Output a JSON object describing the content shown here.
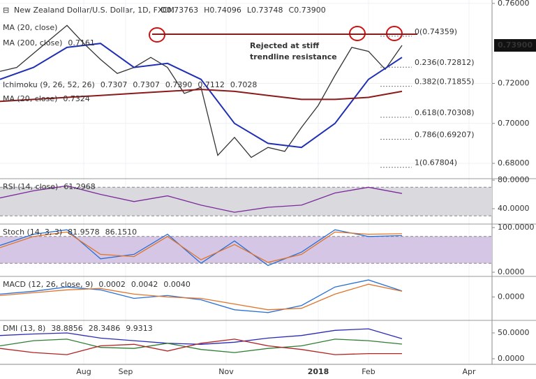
{
  "chart_data": [
    {
      "type": "line",
      "title": "New Zealand Dollar/U.S. Dollar, 1D, FXCM",
      "ohlc": [
        "O0.73763",
        "H0.74096",
        "L0.73748",
        "C0.73900"
      ],
      "legend": [
        {
          "name": "MA (20, close)",
          "values": []
        },
        {
          "name": "MA (200, close)",
          "values": [
            {
              "value": 0.7161,
              "color": "#8b1a1a"
            }
          ]
        },
        {
          "name": "Ichimoku (9, 26, 52, 26)",
          "values": [
            {
              "value": 0.7307,
              "color": "#2a4bd0"
            },
            {
              "value": 0.7307,
              "color": "#b22222"
            },
            {
              "value": 0.739,
              "label": "0.7390",
              "color": "#2e8b3d"
            },
            {
              "value": 0.7112,
              "color": "#2e8b3d"
            },
            {
              "value": 0.7028,
              "color": "#b22222"
            }
          ]
        },
        {
          "name": "MA (20, close)",
          "values": [
            {
              "value": 0.7324,
              "color": "#2a4bd0"
            }
          ]
        }
      ],
      "series": [
        {
          "name": "Close",
          "color": "#333333",
          "x": [
            0,
            2,
            4,
            6,
            8,
            10,
            12,
            14,
            16,
            18,
            20,
            22,
            24,
            26,
            28,
            30,
            32,
            34,
            36,
            38,
            40,
            42,
            44,
            46,
            48
          ],
          "values": [
            0.726,
            0.728,
            0.735,
            0.742,
            0.749,
            0.74,
            0.732,
            0.725,
            0.728,
            0.733,
            0.728,
            0.715,
            0.718,
            0.684,
            0.693,
            0.683,
            0.688,
            0.686,
            0.698,
            0.709,
            0.724,
            0.738,
            0.736,
            0.727,
            0.739
          ]
        },
        {
          "name": "MA (20, close)",
          "color": "#1f2fb5",
          "x": [
            0,
            4,
            8,
            12,
            16,
            20,
            24,
            28,
            32,
            36,
            40,
            44,
            48
          ],
          "values": [
            0.722,
            0.728,
            0.738,
            0.74,
            0.728,
            0.73,
            0.722,
            0.7,
            0.69,
            0.688,
            0.7,
            0.722,
            0.733
          ]
        },
        {
          "name": "MA (200, close)",
          "color": "#8b1a1a",
          "x": [
            0,
            4,
            8,
            12,
            16,
            20,
            24,
            28,
            32,
            36,
            40,
            44,
            48
          ],
          "values": [
            0.711,
            0.712,
            0.713,
            0.714,
            0.715,
            0.716,
            0.717,
            0.716,
            0.714,
            0.712,
            0.712,
            0.713,
            0.716
          ]
        }
      ],
      "trendline": 0.7446,
      "annotation": [
        "Rejected at stiff",
        "trendline resistance"
      ],
      "fib_levels": [
        {
          "value": 0.74359,
          "label": "0(0.74359)"
        },
        {
          "value": 0.72812,
          "label": "0.236(0.72812)"
        },
        {
          "value": 0.71855,
          "label": "0.382(0.71855)"
        },
        {
          "value": 0.70308,
          "label": "0.618(0.70308)"
        },
        {
          "value": 0.69207,
          "label": "0.786(0.69207)"
        },
        {
          "value": 0.67804,
          "label": "1(0.67804)"
        }
      ],
      "last": {
        "value": 0.739,
        "label": "0.73900"
      },
      "xlim": [
        0,
        58.75
      ],
      "xticks": [
        {
          "value": 10,
          "label": "Aug"
        },
        {
          "value": 15,
          "label": "Sep"
        },
        {
          "value": 27,
          "label": "Nov"
        },
        {
          "value": 38,
          "label": "2018"
        },
        {
          "value": 44,
          "label": "Feb"
        },
        {
          "value": 56,
          "label": "Apr"
        }
      ],
      "ylim": [
        0.6727,
        0.7617
      ],
      "yticks": [
        {
          "value": 0.76,
          "label": "0.76000"
        },
        {
          "value": 0.72,
          "label": "0.72000"
        },
        {
          "value": 0.7,
          "label": "0.70000"
        },
        {
          "value": 0.68,
          "label": "0.68000"
        }
      ],
      "grid": true
    },
    {
      "type": "line",
      "title": "RSI (14, close)",
      "legend_values": [
        {
          "value": 61.2968,
          "color": "#7b2a9c"
        }
      ],
      "band": [
        30,
        70
      ],
      "band_color": "#d9d9de",
      "series": [
        {
          "name": "RSI",
          "color": "#7b2a9c",
          "x": [
            0,
            4,
            8,
            12,
            16,
            20,
            24,
            28,
            32,
            36,
            40,
            44,
            48
          ],
          "values": [
            55,
            65,
            72,
            60,
            50,
            58,
            45,
            35,
            42,
            45,
            62,
            70,
            61.2968
          ]
        }
      ],
      "ylim": [
        19.5,
        82
      ],
      "yticks": [
        {
          "value": 80,
          "label": "80.0000"
        },
        {
          "value": 40,
          "label": "40.0000"
        }
      ]
    },
    {
      "type": "line",
      "title": "Stoch (14, 3, 3)",
      "legend_values": [
        {
          "value": 81.9578,
          "color": "#2a6fd6"
        },
        {
          "value": 86.151,
          "label": "86.1510",
          "color": "#e0742a"
        }
      ],
      "band": [
        20,
        80
      ],
      "band_color": "#d4c6e4",
      "series": [
        {
          "name": "%K",
          "color": "#2a6fd6",
          "x": [
            0,
            4,
            8,
            12,
            16,
            20,
            24,
            28,
            32,
            36,
            40,
            44,
            48
          ],
          "values": [
            60,
            85,
            95,
            30,
            40,
            85,
            20,
            70,
            15,
            45,
            95,
            80,
            81.9578
          ]
        },
        {
          "name": "%D",
          "color": "#e0742a",
          "x": [
            0,
            4,
            8,
            12,
            16,
            20,
            24,
            28,
            32,
            36,
            40,
            44,
            48
          ],
          "values": [
            55,
            80,
            90,
            40,
            35,
            80,
            28,
            62,
            22,
            40,
            90,
            85,
            86.151
          ]
        }
      ],
      "ylim": [
        -7.8,
        107.8
      ],
      "yticks": [
        {
          "value": 100,
          "label": "100.0000"
        },
        {
          "value": 0,
          "label": "0.0000"
        }
      ]
    },
    {
      "type": "line",
      "title": "MACD (12, 26, close, 9)",
      "legend_values": [
        {
          "value": 0.0002,
          "color": "#b22222"
        },
        {
          "value": 0.0042,
          "color": "#2a6fd6"
        },
        {
          "value": 0.004,
          "label": "0.0040",
          "color": "#e0742a"
        }
      ],
      "series": [
        {
          "name": "MACD",
          "color": "#2a6fd6",
          "x": [
            0,
            4,
            8,
            12,
            16,
            20,
            24,
            28,
            32,
            36,
            40,
            44,
            48
          ],
          "values": [
            0.002,
            0.004,
            0.007,
            0.005,
            -0.001,
            0.001,
            -0.002,
            -0.009,
            -0.011,
            -0.006,
            0.007,
            0.012,
            0.0042
          ]
        },
        {
          "name": "Signal",
          "color": "#e0742a",
          "x": [
            0,
            4,
            8,
            12,
            16,
            20,
            24,
            28,
            32,
            36,
            40,
            44,
            48
          ],
          "values": [
            0.001,
            0.003,
            0.005,
            0.006,
            0.002,
            0.0,
            -0.001,
            -0.005,
            -0.009,
            -0.008,
            0.002,
            0.009,
            0.004
          ]
        }
      ],
      "ylim": [
        -0.016,
        0.0145
      ],
      "yticks": [
        {
          "value": 0,
          "label": "0.0000"
        }
      ]
    },
    {
      "type": "line",
      "title": "DMI (13, 8)",
      "legend_values": [
        {
          "value": 38.8856,
          "color": "#2a2ab8"
        },
        {
          "value": 28.3486,
          "color": "#2e7d32"
        },
        {
          "value": 9.9313,
          "color": "#b22222"
        }
      ],
      "series": [
        {
          "name": "ADX",
          "color": "#2a2ab8",
          "x": [
            0,
            4,
            8,
            12,
            16,
            20,
            24,
            28,
            32,
            36,
            40,
            44,
            48
          ],
          "values": [
            45,
            48,
            50,
            40,
            35,
            30,
            28,
            32,
            40,
            45,
            55,
            58,
            38.8856
          ]
        },
        {
          "name": "+DI",
          "color": "#2e7d32",
          "x": [
            0,
            4,
            8,
            12,
            16,
            20,
            24,
            28,
            32,
            36,
            40,
            44,
            48
          ],
          "values": [
            25,
            35,
            38,
            22,
            20,
            30,
            18,
            12,
            20,
            25,
            38,
            35,
            28.3486
          ]
        },
        {
          "name": "-DI",
          "color": "#b22222",
          "x": [
            0,
            4,
            8,
            12,
            16,
            20,
            24,
            28,
            32,
            36,
            40,
            44,
            48
          ],
          "values": [
            20,
            12,
            8,
            25,
            28,
            15,
            30,
            38,
            25,
            18,
            8,
            10,
            9.9313
          ]
        }
      ],
      "ylim": [
        -9.5,
        74.3
      ],
      "yticks": [
        {
          "value": 50,
          "label": "50.0000"
        },
        {
          "value": 0,
          "label": "0.0000"
        }
      ]
    }
  ]
}
